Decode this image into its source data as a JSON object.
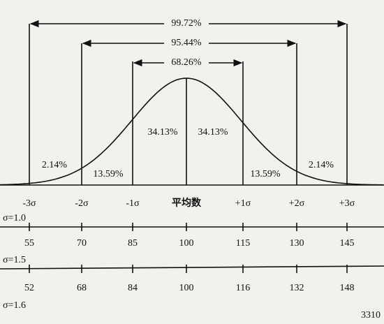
{
  "spans": [
    "99.72%",
    "95.44%",
    "68.26%"
  ],
  "regions": [
    "2.14%",
    "13.59%",
    "34.13%",
    "34.13%",
    "13.59%",
    "2.14%"
  ],
  "sigma_labels": [
    "-3σ",
    "-2σ",
    "-1σ",
    "平均数",
    "+1σ",
    "+2σ",
    "+3σ"
  ],
  "scales": [
    {
      "label": "σ=1.0",
      "values": [
        55,
        70,
        85,
        100,
        115,
        130,
        145
      ]
    },
    {
      "label": "σ=1.5",
      "values": [
        52,
        68,
        84,
        100,
        116,
        132,
        148
      ]
    },
    {
      "label": "σ=1.6"
    }
  ],
  "watermark": "3310"
}
